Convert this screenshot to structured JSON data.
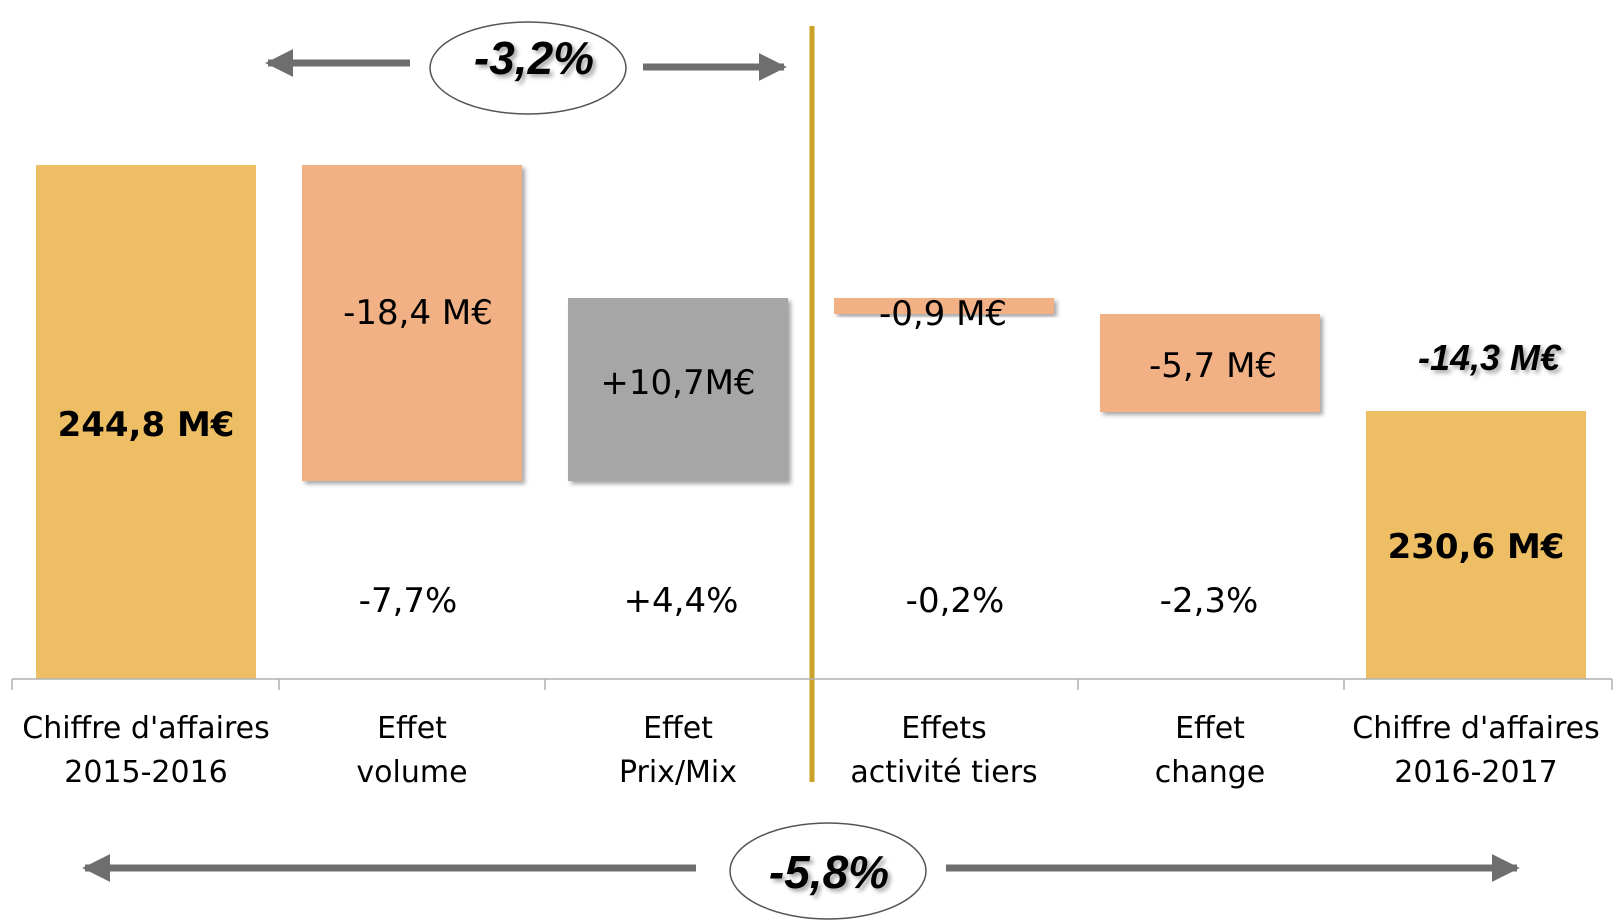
{
  "chart_data": {
    "type": "bar",
    "subtype": "waterfall",
    "categories": [
      [
        "Chiffre d'affaires",
        "2015-2016"
      ],
      [
        "Effet",
        "volume"
      ],
      [
        "Effet",
        "Prix/Mix"
      ],
      [
        "Effets",
        "activité tiers"
      ],
      [
        "Effet",
        "change"
      ],
      [
        "Chiffre d'affaires",
        "2016-2017"
      ]
    ],
    "values": [
      244.8,
      -18.4,
      10.7,
      -0.9,
      -5.7,
      230.6
    ],
    "value_labels": [
      "244,8 M€",
      "-18,4 M€",
      "+10,7M€",
      "-0,9 M€",
      "-5,7 M€",
      "230,6 M€"
    ],
    "percent_labels": [
      "",
      "-7,7%",
      "+4,4%",
      "-0,2%",
      "-2,3%",
      ""
    ],
    "bar_kinds": [
      "total",
      "negative",
      "positive",
      "negative",
      "negative",
      "total"
    ],
    "total_change_label": "-14,3 M€",
    "group_change_label": "-3,2%",
    "overall_change_label": "-5,8%",
    "colors": {
      "total": "#EDBE63",
      "negative": "#F2B085",
      "positive": "#A6A6A6",
      "divider": "#C9A227",
      "arrow": "#6E6E6E",
      "axis": "#B0B0B0",
      "text": "#000000"
    }
  }
}
